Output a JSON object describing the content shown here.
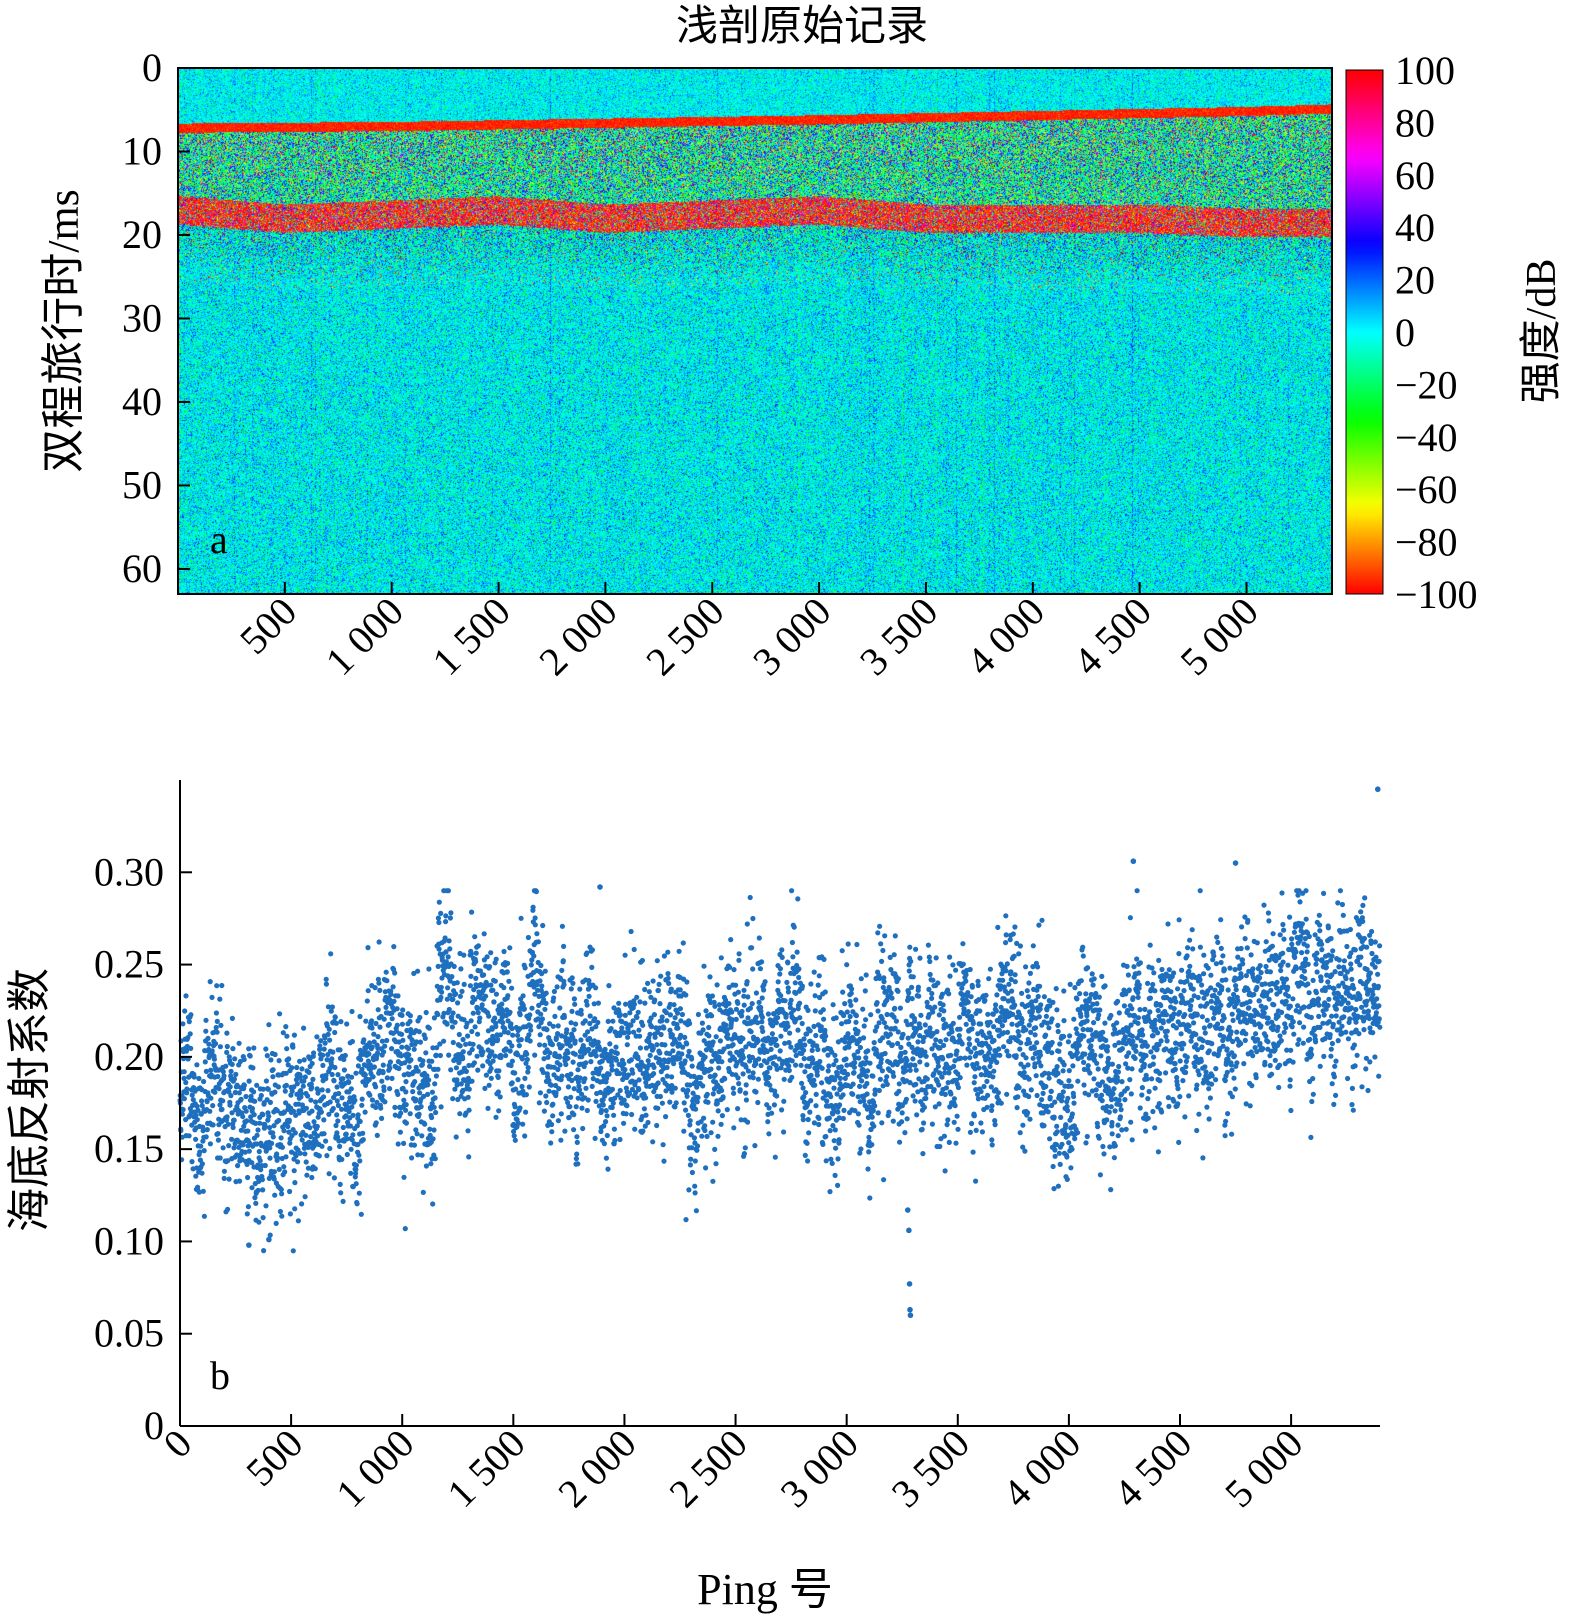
{
  "chart_data": [
    {
      "panel": "a",
      "type": "heatmap",
      "title": "浅剖原始记录",
      "ylabel": "双程旅行时/ms",
      "xlabel": "",
      "x_range": [
        0,
        5400
      ],
      "ylim": [
        0,
        63
      ],
      "y_inverted": true,
      "x_ticks": [
        500,
        1000,
        1500,
        2000,
        2500,
        3000,
        3500,
        4000,
        4500,
        5000
      ],
      "x_tick_labels": [
        "500",
        "1 000",
        "1 500",
        "2 000",
        "2 500",
        "3 000",
        "3 500",
        "4 000",
        "4 500",
        "5 000"
      ],
      "y_ticks": [
        0,
        10,
        20,
        30,
        40,
        50,
        60
      ],
      "y_tick_labels": [
        "0",
        "10",
        "20",
        "30",
        "40",
        "50",
        "60"
      ],
      "colorbar": {
        "label": "强度/dB",
        "range": [
          -100,
          100
        ],
        "ticks": [
          100,
          80,
          60,
          40,
          20,
          0,
          -20,
          -40,
          -60,
          -80,
          -100
        ],
        "tick_labels": [
          "100",
          "80",
          "60",
          "40",
          "20",
          "0",
          "−20",
          "−40",
          "−60",
          "−80",
          "−100"
        ],
        "colormap": "hsv: red (−100) → orange → yellow → green → cyan (0) → blue → magenta → red (100)"
      },
      "background_value_db": 0,
      "seafloor_reflector_ms": [
        {
          "ping": 0,
          "ms": 6.8
        },
        {
          "ping": 1000,
          "ms": 6.6
        },
        {
          "ping": 2000,
          "ms": 6.2
        },
        {
          "ping": 3000,
          "ms": 5.8
        },
        {
          "ping": 4000,
          "ms": 5.3
        },
        {
          "ping": 5000,
          "ms": 4.8
        },
        {
          "ping": 5400,
          "ms": 4.5
        }
      ],
      "subbottom_reflector_ms": [
        {
          "ping": 0,
          "ms": 16.5
        },
        {
          "ping": 500,
          "ms": 17.5
        },
        {
          "ping": 1000,
          "ms": 17
        },
        {
          "ping": 1500,
          "ms": 16.5
        },
        {
          "ping": 2000,
          "ms": 17.5
        },
        {
          "ping": 2500,
          "ms": 17
        },
        {
          "ping": 3000,
          "ms": 16.5
        },
        {
          "ping": 3500,
          "ms": 17.5
        },
        {
          "ping": 4000,
          "ms": 17.5
        },
        {
          "ping": 4500,
          "ms": 17.5
        },
        {
          "ping": 5000,
          "ms": 18
        },
        {
          "ping": 5400,
          "ms": 18
        }
      ],
      "panel_label": "a"
    },
    {
      "panel": "b",
      "type": "scatter",
      "title": "",
      "xlabel": "Ping 号",
      "ylabel": "海底反射系数",
      "xlim": [
        0,
        5400
      ],
      "ylim": [
        0,
        0.35
      ],
      "x_ticks": [
        0,
        500,
        1000,
        1500,
        2000,
        2500,
        3000,
        3500,
        4000,
        4500,
        5000
      ],
      "x_tick_labels": [
        "0",
        "500",
        "1 000",
        "1 500",
        "2 000",
        "2 500",
        "3 000",
        "3 500",
        "4 000",
        "4 500",
        "5 000"
      ],
      "y_ticks": [
        0,
        0.05,
        0.1,
        0.15,
        0.2,
        0.25,
        0.3
      ],
      "y_tick_labels": [
        "0",
        "0.05",
        "0.10",
        "0.15",
        "0.20",
        "0.25",
        "0.30"
      ],
      "marker_color": "#1f6fbf",
      "trend": [
        {
          "x": 0,
          "y": 0.18
        },
        {
          "x": 200,
          "y": 0.17
        },
        {
          "x": 400,
          "y": 0.155
        },
        {
          "x": 600,
          "y": 0.17
        },
        {
          "x": 800,
          "y": 0.195
        },
        {
          "x": 1000,
          "y": 0.2
        },
        {
          "x": 1500,
          "y": 0.195
        },
        {
          "x": 2000,
          "y": 0.2
        },
        {
          "x": 2500,
          "y": 0.2
        },
        {
          "x": 3000,
          "y": 0.205
        },
        {
          "x": 3500,
          "y": 0.205
        },
        {
          "x": 4000,
          "y": 0.205
        },
        {
          "x": 4500,
          "y": 0.215
        },
        {
          "x": 5000,
          "y": 0.22
        },
        {
          "x": 5400,
          "y": 0.22
        }
      ],
      "spread": 0.022,
      "n_points": 5400,
      "notable_points": [
        {
          "x": 5390,
          "y": 0.345
        },
        {
          "x": 4290,
          "y": 0.306
        },
        {
          "x": 4750,
          "y": 0.305
        },
        {
          "x": 1890,
          "y": 0.292
        },
        {
          "x": 3275,
          "y": 0.117
        },
        {
          "x": 3280,
          "y": 0.106
        },
        {
          "x": 3283,
          "y": 0.077
        },
        {
          "x": 3285,
          "y": 0.063
        },
        {
          "x": 3287,
          "y": 0.06
        },
        {
          "x": 310,
          "y": 0.098
        },
        {
          "x": 400,
          "y": 0.101
        }
      ],
      "panel_label": "b"
    }
  ]
}
